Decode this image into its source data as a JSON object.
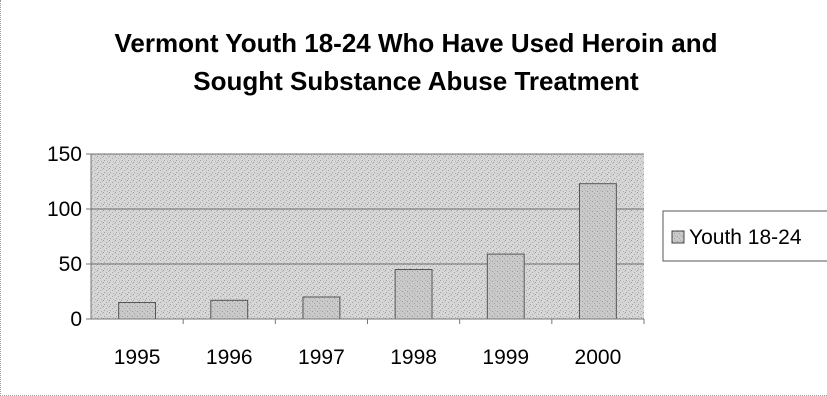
{
  "chart_data": {
    "type": "bar",
    "title_lines": [
      "Vermont Youth 18-24 Who Have Used Heroin and",
      "Sought Substance Abuse Treatment"
    ],
    "categories": [
      "1995",
      "1996",
      "1997",
      "1998",
      "1999",
      "2000"
    ],
    "series": [
      {
        "name": "Youth 18-24",
        "values": [
          15,
          17,
          20,
          45,
          59,
          123
        ]
      }
    ],
    "ylim": [
      0,
      150
    ],
    "yticks": [
      "0",
      "50",
      "100",
      "150"
    ],
    "xlabel": "",
    "ylabel": "",
    "grid": true,
    "legend": "right",
    "colors": {
      "plot_background": "#d4d4d4",
      "bar_fill": "#c7c7c7",
      "bar_stroke": "#555555",
      "gridline": "#6f6f6f",
      "legend_border": "#555555"
    }
  }
}
